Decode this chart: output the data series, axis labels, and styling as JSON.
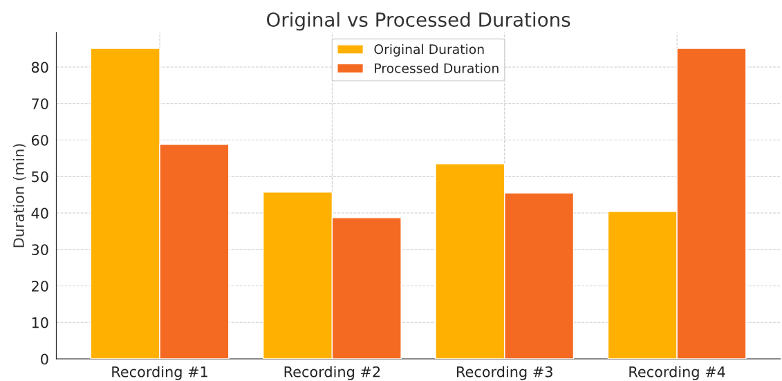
{
  "chart_data": {
    "type": "bar",
    "title": "Original vs Processed Durations",
    "ylabel": "Duration (min)",
    "categories": [
      "Recording #1",
      "Recording #2",
      "Recording #3",
      "Recording #4"
    ],
    "series": [
      {
        "name": "Original Duration",
        "color": "#ffb000",
        "values": [
          85.1,
          45.7,
          53.5,
          40.4
        ]
      },
      {
        "name": "Processed Duration",
        "color": "#f46a22",
        "values": [
          58.8,
          38.7,
          45.5,
          85.1
        ]
      }
    ],
    "ylim": [
      0,
      89.5
    ],
    "yticks": [
      0,
      10,
      20,
      30,
      40,
      50,
      60,
      70,
      80
    ],
    "grid": true,
    "legend": "top"
  }
}
